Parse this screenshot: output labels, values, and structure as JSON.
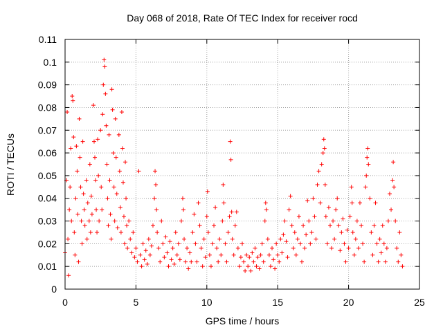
{
  "chart_data": {
    "type": "scatter",
    "title": "Day 068 of 2018, Rate Of TEC Index for receiver rocd",
    "xlabel": "GPS time / hours",
    "ylabel": "ROTI / TECUs",
    "xlim": [
      0,
      25
    ],
    "ylim": [
      0,
      0.11
    ],
    "x_ticks": [
      "0",
      "5",
      "10",
      "15",
      "20",
      "25"
    ],
    "y_ticks": [
      "0",
      "0.01",
      "0.02",
      "0.03",
      "0.04",
      "0.05",
      "0.06",
      "0.07",
      "0.08",
      "0.09",
      "0.1",
      "0.11"
    ],
    "grid": true,
    "legend": "none",
    "marker": "+",
    "color": "#ff0000",
    "series": [
      {
        "name": "",
        "points": [
          [
            0.0,
            0.016
          ],
          [
            0.1,
            0.048
          ],
          [
            0.15,
            0.078
          ],
          [
            0.2,
            0.022
          ],
          [
            0.25,
            0.006
          ],
          [
            0.3,
            0.035
          ],
          [
            0.35,
            0.045
          ],
          [
            0.4,
            0.062
          ],
          [
            0.45,
            0.03
          ],
          [
            0.5,
            0.085
          ],
          [
            0.55,
            0.083
          ],
          [
            0.6,
            0.067
          ],
          [
            0.65,
            0.025
          ],
          [
            0.7,
            0.015
          ],
          [
            0.75,
            0.04
          ],
          [
            0.8,
            0.063
          ],
          [
            0.85,
            0.052
          ],
          [
            0.9,
            0.033
          ],
          [
            0.95,
            0.012
          ],
          [
            1.0,
            0.075
          ],
          [
            1.05,
            0.058
          ],
          [
            1.1,
            0.045
          ],
          [
            1.15,
            0.03
          ],
          [
            1.2,
            0.02
          ],
          [
            1.25,
            0.065
          ],
          [
            1.3,
            0.042
          ],
          [
            1.35,
            0.035
          ],
          [
            1.4,
            0.028
          ],
          [
            1.5,
            0.048
          ],
          [
            1.55,
            0.022
          ],
          [
            1.6,
            0.038
          ],
          [
            1.7,
            0.03
          ],
          [
            1.75,
            0.055
          ],
          [
            1.8,
            0.025
          ],
          [
            1.85,
            0.041
          ],
          [
            1.9,
            0.033
          ],
          [
            2.0,
            0.081
          ],
          [
            2.05,
            0.065
          ],
          [
            2.1,
            0.058
          ],
          [
            2.15,
            0.048
          ],
          [
            2.2,
            0.035
          ],
          [
            2.25,
            0.025
          ],
          [
            2.3,
            0.066
          ],
          [
            2.35,
            0.05
          ],
          [
            2.4,
            0.03
          ],
          [
            2.5,
            0.07
          ],
          [
            2.55,
            0.045
          ],
          [
            2.6,
            0.035
          ],
          [
            2.65,
            0.077
          ],
          [
            2.7,
            0.09
          ],
          [
            2.75,
            0.101
          ],
          [
            2.8,
            0.098
          ],
          [
            2.85,
            0.086
          ],
          [
            2.9,
            0.072
          ],
          [
            2.95,
            0.055
          ],
          [
            3.0,
            0.04
          ],
          [
            3.05,
            0.028
          ],
          [
            3.1,
            0.068
          ],
          [
            3.15,
            0.048
          ],
          [
            3.2,
            0.033
          ],
          [
            3.25,
            0.022
          ],
          [
            3.3,
            0.088
          ],
          [
            3.35,
            0.079
          ],
          [
            3.4,
            0.06
          ],
          [
            3.45,
            0.045
          ],
          [
            3.5,
            0.03
          ],
          [
            3.55,
            0.075
          ],
          [
            3.6,
            0.058
          ],
          [
            3.65,
            0.042
          ],
          [
            3.7,
            0.027
          ],
          [
            3.8,
            0.068
          ],
          [
            3.85,
            0.052
          ],
          [
            3.9,
            0.036
          ],
          [
            3.95,
            0.025
          ],
          [
            4.0,
            0.078
          ],
          [
            4.05,
            0.062
          ],
          [
            4.1,
            0.047
          ],
          [
            4.15,
            0.032
          ],
          [
            4.2,
            0.02
          ],
          [
            4.25,
            0.056
          ],
          [
            4.3,
            0.04
          ],
          [
            4.35,
            0.028
          ],
          [
            4.4,
            0.018
          ],
          [
            4.5,
            0.03
          ],
          [
            4.6,
            0.022
          ],
          [
            4.7,
            0.016
          ],
          [
            4.8,
            0.025
          ],
          [
            4.9,
            0.014
          ],
          [
            5.0,
            0.018
          ],
          [
            5.1,
            0.012
          ],
          [
            5.2,
            0.052
          ],
          [
            5.3,
            0.015
          ],
          [
            5.4,
            0.01
          ],
          [
            5.5,
            0.02
          ],
          [
            5.6,
            0.013
          ],
          [
            5.7,
            0.017
          ],
          [
            5.8,
            0.011
          ],
          [
            5.9,
            0.022
          ],
          [
            6.0,
            0.015
          ],
          [
            6.1,
            0.019
          ],
          [
            6.2,
            0.028
          ],
          [
            6.3,
            0.04
          ],
          [
            6.35,
            0.052
          ],
          [
            6.4,
            0.046
          ],
          [
            6.45,
            0.035
          ],
          [
            6.5,
            0.025
          ],
          [
            6.6,
            0.018
          ],
          [
            6.7,
            0.012
          ],
          [
            6.8,
            0.03
          ],
          [
            6.9,
            0.02
          ],
          [
            7.0,
            0.014
          ],
          [
            7.1,
            0.023
          ],
          [
            7.2,
            0.016
          ],
          [
            7.3,
            0.01
          ],
          [
            7.4,
            0.021
          ],
          [
            7.5,
            0.013
          ],
          [
            7.6,
            0.018
          ],
          [
            7.7,
            0.011
          ],
          [
            7.8,
            0.025
          ],
          [
            7.9,
            0.015
          ],
          [
            8.0,
            0.02
          ],
          [
            8.1,
            0.013
          ],
          [
            8.2,
            0.03
          ],
          [
            8.3,
            0.04
          ],
          [
            8.35,
            0.035
          ],
          [
            8.4,
            0.022
          ],
          [
            8.5,
            0.012
          ],
          [
            8.6,
            0.018
          ],
          [
            8.7,
            0.009
          ],
          [
            8.8,
            0.016
          ],
          [
            8.9,
            0.012
          ],
          [
            9.0,
            0.025
          ],
          [
            9.1,
            0.033
          ],
          [
            9.2,
            0.02
          ],
          [
            9.3,
            0.012
          ],
          [
            9.4,
            0.038
          ],
          [
            9.5,
            0.028
          ],
          [
            9.6,
            0.018
          ],
          [
            9.7,
            0.01
          ],
          [
            9.8,
            0.022
          ],
          [
            9.9,
            0.014
          ],
          [
            10.0,
            0.032
          ],
          [
            10.05,
            0.043
          ],
          [
            10.1,
            0.025
          ],
          [
            10.2,
            0.015
          ],
          [
            10.3,
            0.01
          ],
          [
            10.4,
            0.02
          ],
          [
            10.5,
            0.028
          ],
          [
            10.6,
            0.036
          ],
          [
            10.7,
            0.018
          ],
          [
            10.8,
            0.012
          ],
          [
            10.9,
            0.022
          ],
          [
            11.0,
            0.015
          ],
          [
            11.1,
            0.03
          ],
          [
            11.15,
            0.046
          ],
          [
            11.2,
            0.038
          ],
          [
            11.3,
            0.02
          ],
          [
            11.4,
            0.012
          ],
          [
            11.5,
            0.025
          ],
          [
            11.6,
            0.032
          ],
          [
            11.65,
            0.065
          ],
          [
            11.7,
            0.057
          ],
          [
            11.75,
            0.034
          ],
          [
            11.8,
            0.022
          ],
          [
            11.9,
            0.015
          ],
          [
            12.0,
            0.028
          ],
          [
            12.1,
            0.034
          ],
          [
            12.2,
            0.018
          ],
          [
            12.3,
            0.01
          ],
          [
            12.4,
            0.014
          ],
          [
            12.5,
            0.02
          ],
          [
            12.6,
            0.012
          ],
          [
            12.7,
            0.008
          ],
          [
            12.8,
            0.015
          ],
          [
            12.9,
            0.01
          ],
          [
            13.0,
            0.014
          ],
          [
            13.1,
            0.008
          ],
          [
            13.2,
            0.016
          ],
          [
            13.3,
            0.012
          ],
          [
            13.4,
            0.018
          ],
          [
            13.5,
            0.01
          ],
          [
            13.6,
            0.014
          ],
          [
            13.7,
            0.009
          ],
          [
            13.8,
            0.015
          ],
          [
            13.9,
            0.02
          ],
          [
            14.0,
            0.012
          ],
          [
            14.1,
            0.03
          ],
          [
            14.15,
            0.038
          ],
          [
            14.2,
            0.035
          ],
          [
            14.3,
            0.022
          ],
          [
            14.4,
            0.015
          ],
          [
            14.5,
            0.01
          ],
          [
            14.6,
            0.018
          ],
          [
            14.7,
            0.013
          ],
          [
            14.8,
            0.009
          ],
          [
            14.9,
            0.02
          ],
          [
            15.0,
            0.015
          ],
          [
            15.1,
            0.012
          ],
          [
            15.2,
            0.022
          ],
          [
            15.3,
            0.016
          ],
          [
            15.4,
            0.024
          ],
          [
            15.5,
            0.03
          ],
          [
            15.6,
            0.021
          ],
          [
            15.7,
            0.014
          ],
          [
            15.8,
            0.035
          ],
          [
            15.9,
            0.041
          ],
          [
            16.0,
            0.028
          ],
          [
            16.1,
            0.018
          ],
          [
            16.2,
            0.025
          ],
          [
            16.3,
            0.015
          ],
          [
            16.4,
            0.022
          ],
          [
            16.5,
            0.032
          ],
          [
            16.6,
            0.02
          ],
          [
            16.7,
            0.012
          ],
          [
            16.8,
            0.028
          ],
          [
            16.9,
            0.018
          ],
          [
            17.0,
            0.024
          ],
          [
            17.1,
            0.039
          ],
          [
            17.2,
            0.03
          ],
          [
            17.3,
            0.02
          ],
          [
            17.4,
            0.025
          ],
          [
            17.5,
            0.04
          ],
          [
            17.6,
            0.032
          ],
          [
            17.7,
            0.022
          ],
          [
            17.8,
            0.046
          ],
          [
            17.9,
            0.052
          ],
          [
            18.0,
            0.038
          ],
          [
            18.1,
            0.055
          ],
          [
            18.2,
            0.06
          ],
          [
            18.25,
            0.066
          ],
          [
            18.3,
            0.062
          ],
          [
            18.35,
            0.046
          ],
          [
            18.4,
            0.032
          ],
          [
            18.5,
            0.02
          ],
          [
            18.6,
            0.036
          ],
          [
            18.7,
            0.028
          ],
          [
            18.8,
            0.018
          ],
          [
            18.9,
            0.03
          ],
          [
            19.0,
            0.022
          ],
          [
            19.1,
            0.035
          ],
          [
            19.2,
            0.04
          ],
          [
            19.3,
            0.028
          ],
          [
            19.4,
            0.017
          ],
          [
            19.5,
            0.025
          ],
          [
            19.6,
            0.031
          ],
          [
            19.7,
            0.02
          ],
          [
            19.8,
            0.012
          ],
          [
            19.9,
            0.026
          ],
          [
            20.0,
            0.018
          ],
          [
            20.1,
            0.032
          ],
          [
            20.2,
            0.045
          ],
          [
            20.25,
            0.038
          ],
          [
            20.3,
            0.025
          ],
          [
            20.4,
            0.015
          ],
          [
            20.5,
            0.022
          ],
          [
            20.6,
            0.03
          ],
          [
            20.7,
            0.018
          ],
          [
            20.8,
            0.038
          ],
          [
            20.9,
            0.028
          ],
          [
            21.0,
            0.02
          ],
          [
            21.1,
            0.012
          ],
          [
            21.2,
            0.045
          ],
          [
            21.25,
            0.05
          ],
          [
            21.3,
            0.058
          ],
          [
            21.35,
            0.062
          ],
          [
            21.4,
            0.055
          ],
          [
            21.5,
            0.04
          ],
          [
            21.6,
            0.025
          ],
          [
            21.7,
            0.015
          ],
          [
            21.8,
            0.028
          ],
          [
            21.9,
            0.038
          ],
          [
            22.0,
            0.02
          ],
          [
            22.1,
            0.012
          ],
          [
            22.2,
            0.022
          ],
          [
            22.3,
            0.016
          ],
          [
            22.4,
            0.028
          ],
          [
            22.5,
            0.02
          ],
          [
            22.6,
            0.012
          ],
          [
            22.7,
            0.018
          ],
          [
            22.8,
            0.03
          ],
          [
            22.9,
            0.042
          ],
          [
            23.0,
            0.035
          ],
          [
            23.1,
            0.048
          ],
          [
            23.15,
            0.056
          ],
          [
            23.2,
            0.045
          ],
          [
            23.3,
            0.03
          ],
          [
            23.4,
            0.018
          ],
          [
            23.5,
            0.012
          ],
          [
            23.6,
            0.025
          ],
          [
            23.7,
            0.015
          ],
          [
            23.8,
            0.01
          ]
        ]
      }
    ]
  }
}
